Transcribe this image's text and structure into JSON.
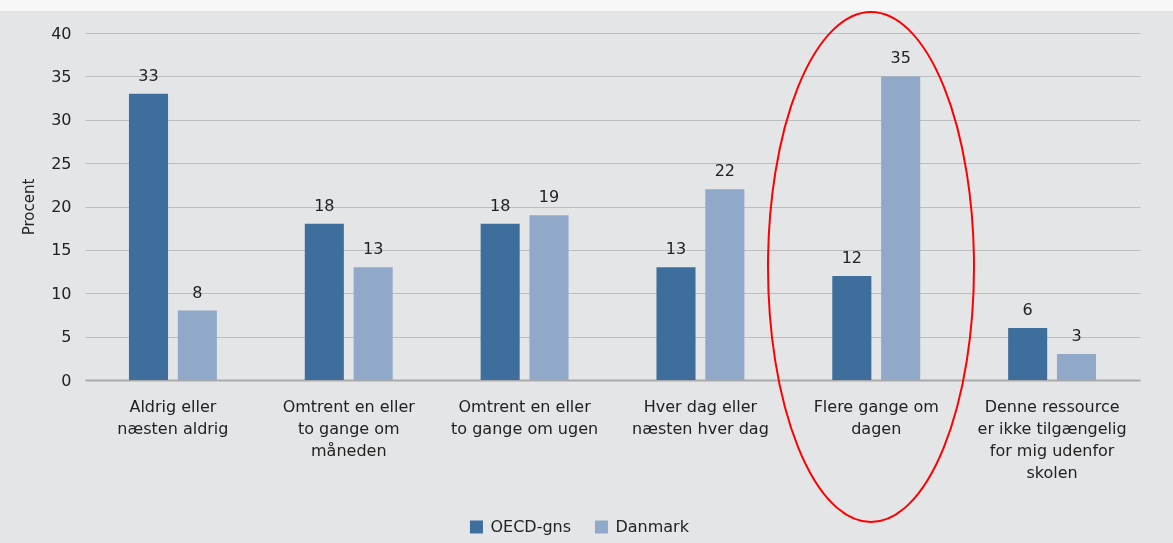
{
  "chart_data": {
    "type": "bar",
    "categories": [
      "Aldrig eller næsten aldrig",
      "Omtrent en eller to gange om måneden",
      "Omtrent en eller to gange om ugen",
      "Hver dag eller næsten hver dag",
      "Flere gange om dagen",
      "Denne ressource er ikke tilgængelig for mig udenfor skolen"
    ],
    "series": [
      {
        "name": "OECD-gns",
        "color": "#3e6f9c",
        "values": [
          33,
          18,
          18,
          13,
          12,
          6
        ]
      },
      {
        "name": "Danmark",
        "color": "#91a9c8",
        "values": [
          8,
          13,
          19,
          22,
          35,
          3
        ]
      }
    ],
    "ylabel": "Procent",
    "ylim": [
      0,
      40
    ],
    "yticks": [
      0,
      5,
      10,
      15,
      20,
      25,
      30,
      35,
      40
    ],
    "grid": "y",
    "legend": "bottom",
    "data_labels": true
  }
}
